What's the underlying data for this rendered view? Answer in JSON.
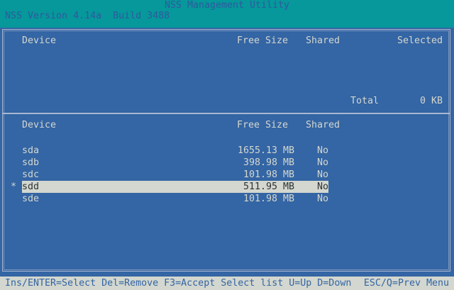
{
  "header": {
    "title": "NSS Management Utility",
    "version": "NSS Version 4.14a  Build 3488"
  },
  "selected_panel": {
    "columns": {
      "device": "Device",
      "free_size": "Free Size",
      "shared": "Shared",
      "selected": "Selected"
    },
    "total_label": "Total",
    "total_value": "0 KB"
  },
  "device_panel": {
    "columns": {
      "device": "Device",
      "free_size": "Free Size",
      "shared": "Shared"
    },
    "rows": [
      {
        "marker": "",
        "device": "sda",
        "free_size": "1655.13 MB",
        "shared": "No"
      },
      {
        "marker": "",
        "device": "sdb",
        "free_size": "398.98 MB",
        "shared": "No"
      },
      {
        "marker": "",
        "device": "sdc",
        "free_size": "101.98 MB",
        "shared": "No"
      },
      {
        "marker": "*",
        "device": "sdd",
        "free_size": "511.95 MB",
        "shared": "No",
        "highlighted": true
      },
      {
        "marker": "",
        "device": "sde",
        "free_size": "101.98 MB",
        "shared": "No"
      }
    ]
  },
  "status_bar": {
    "left": "Ins/ENTER=Select Del=Remove F3=Accept Select list U=Up D=Down",
    "right": "ESC/Q=Prev Menu"
  },
  "colors": {
    "title_bar": "#06989a",
    "background": "#3465a4",
    "text": "#d3d7cf",
    "highlight": "#d3d7cf"
  }
}
